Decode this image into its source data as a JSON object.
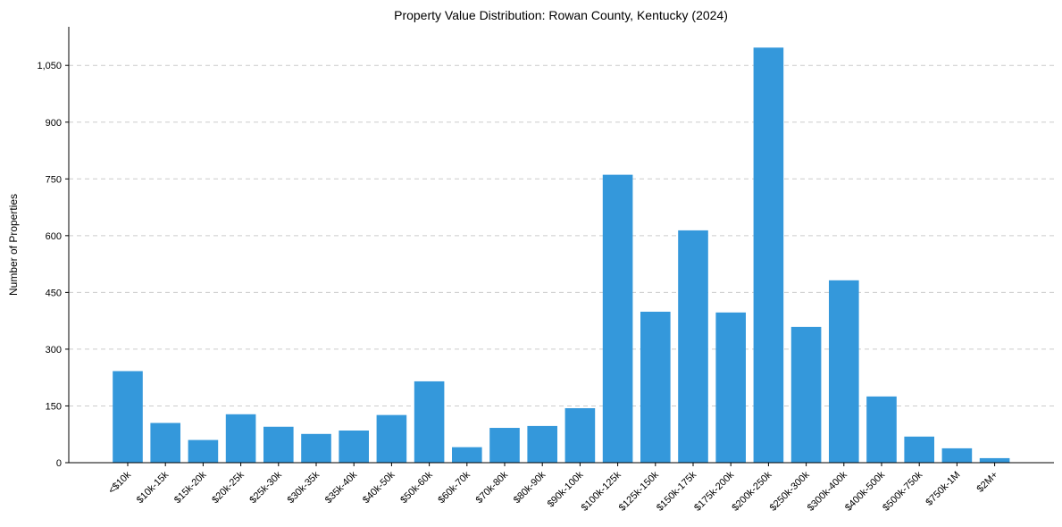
{
  "chart_data": {
    "type": "bar",
    "title": "Property Value Distribution: Rowan County, Kentucky (2024)",
    "xlabel": "",
    "ylabel": "Number of Properties",
    "categories": [
      "<$10k",
      "$10k-15k",
      "$15k-20k",
      "$20k-25k",
      "$25k-30k",
      "$30k-35k",
      "$35k-40k",
      "$40k-50k",
      "$50k-60k",
      "$60k-70k",
      "$70k-80k",
      "$80k-90k",
      "$90k-100k",
      "$100k-125k",
      "$125k-150k",
      "$150k-175k",
      "$175k-200k",
      "$200k-250k",
      "$250k-300k",
      "$300k-400k",
      "$400k-500k",
      "$500k-750k",
      "$750k-1M",
      "$2M+"
    ],
    "values": [
      242,
      105,
      60,
      128,
      95,
      76,
      85,
      126,
      215,
      41,
      92,
      97,
      144,
      761,
      399,
      614,
      397,
      1097,
      359,
      482,
      175,
      69,
      38,
      12
    ],
    "yticks": [
      0,
      150,
      300,
      450,
      600,
      750,
      900,
      1050
    ],
    "ytick_labels": [
      "0",
      "150",
      "300",
      "450",
      "600",
      "750",
      "900",
      "1,050"
    ],
    "ylim": [
      0,
      1152
    ],
    "grid": "y-dashed",
    "bar_color": "#3498db"
  }
}
